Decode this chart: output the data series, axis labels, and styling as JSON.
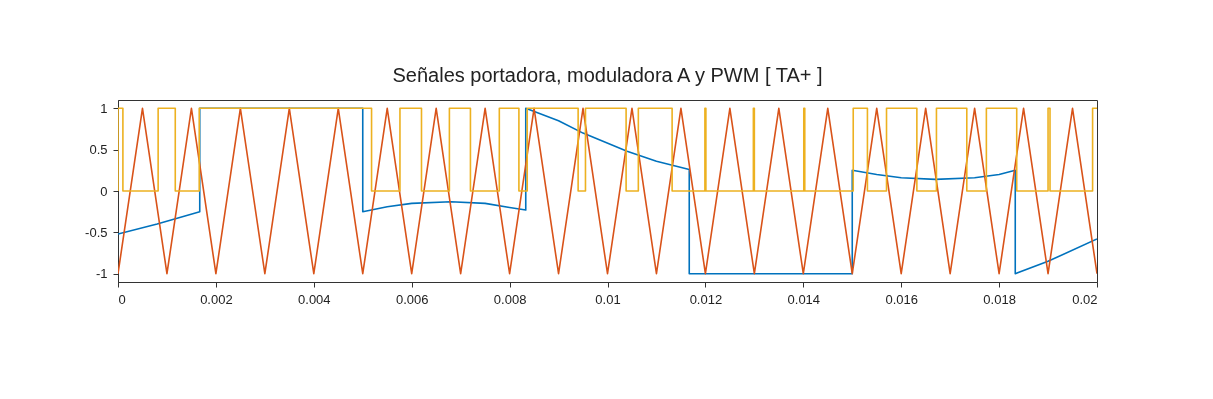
{
  "chart_data": {
    "type": "line",
    "title": "Señales portadora, moduladora A y PWM [ TA+ ]",
    "xlim": [
      0,
      0.02
    ],
    "xticks": [
      0,
      0.002,
      0.004,
      0.006,
      0.008,
      0.01,
      0.012,
      0.014,
      0.016,
      0.018,
      0.02
    ],
    "ylim": [
      -1.1,
      1.1
    ],
    "yticks": [
      -1,
      -0.5,
      0,
      0.5,
      1
    ],
    "grid": false,
    "series": [
      {
        "color": "#0072bd",
        "x": [
          0,
          0.0008,
          0.00167,
          0.00167,
          0.005,
          0.005,
          0.0055,
          0.006,
          0.0068,
          0.0075,
          0.008,
          0.00833,
          0.00833,
          0.009,
          0.0095,
          0.0104,
          0.011,
          0.01167,
          0.01167,
          0.015,
          0.015,
          0.0155,
          0.016,
          0.0167,
          0.0175,
          0.018,
          0.01833,
          0.01833,
          0.019,
          0.02
        ],
        "values": [
          -0.52,
          -0.4,
          -0.25,
          1,
          1,
          -0.25,
          -0.19,
          -0.15,
          -0.13,
          -0.15,
          -0.2,
          -0.23,
          1,
          0.85,
          0.7,
          0.48,
          0.36,
          0.26,
          -1,
          -1,
          0.25,
          0.2,
          0.16,
          0.14,
          0.16,
          0.2,
          0.25,
          -1,
          -0.85,
          -0.58
        ]
      },
      {
        "color": "#d95319",
        "x": [
          0,
          0.0005,
          0.001,
          0.0015,
          0.002,
          0.0025,
          0.003,
          0.0035,
          0.004,
          0.0045,
          0.005,
          0.0055,
          0.006,
          0.0065,
          0.007,
          0.0075,
          0.008,
          0.0085,
          0.009,
          0.0095,
          0.01,
          0.0105,
          0.011,
          0.0115,
          0.012,
          0.0125,
          0.013,
          0.0135,
          0.014,
          0.0145,
          0.015,
          0.0155,
          0.016,
          0.0165,
          0.017,
          0.0175,
          0.018,
          0.0185,
          0.019,
          0.0195,
          0.02
        ],
        "values": [
          -1,
          1,
          -1,
          1,
          -1,
          1,
          -1,
          1,
          -1,
          1,
          -1,
          1,
          -1,
          1,
          -1,
          1,
          -1,
          1,
          -1,
          1,
          -1,
          1,
          -1,
          1,
          -1,
          1,
          -1,
          1,
          -1,
          1,
          -1,
          1,
          -1,
          1,
          -1,
          1,
          -1,
          1,
          -1,
          1,
          -1
        ]
      },
      {
        "color": "#edb120",
        "x": [
          0,
          0,
          0.0001,
          0.0001,
          0.00082,
          0.00082,
          0.00117,
          0.00117,
          0.00166,
          0.00166,
          0.00518,
          0.00518,
          0.00576,
          0.00576,
          0.0062,
          0.0062,
          0.00677,
          0.00677,
          0.0072,
          0.0072,
          0.00779,
          0.00779,
          0.00819,
          0.00819,
          0.00836,
          0.00836,
          0.0094,
          0.0094,
          0.00955,
          0.00955,
          0.01038,
          0.01038,
          0.01063,
          0.01063,
          0.01132,
          0.01132,
          0.01199,
          0.01199,
          0.01201,
          0.01201,
          0.01298,
          0.01298,
          0.013,
          0.013,
          0.01401,
          0.01401,
          0.01403,
          0.01403,
          0.01502,
          0.01502,
          0.01531,
          0.01531,
          0.0157,
          0.0157,
          0.01632,
          0.01632,
          0.01672,
          0.01672,
          0.01734,
          0.01734,
          0.01774,
          0.01774,
          0.01836,
          0.01836,
          0.019,
          0.019,
          0.01904,
          0.01904,
          0.01991,
          0.01991,
          0.02
        ],
        "values": [
          0,
          1,
          1,
          0,
          0,
          1,
          1,
          0,
          0,
          1,
          1,
          0,
          0,
          1,
          1,
          0,
          0,
          1,
          1,
          0,
          0,
          1,
          1,
          0,
          0,
          1,
          1,
          0,
          0,
          1,
          1,
          0,
          0,
          1,
          1,
          0,
          0,
          1,
          1,
          0,
          0,
          1,
          1,
          0,
          0,
          1,
          1,
          0,
          0,
          1,
          1,
          0,
          0,
          1,
          1,
          0,
          0,
          1,
          1,
          0,
          0,
          1,
          1,
          0,
          0,
          1,
          1,
          0,
          0,
          1,
          1
        ]
      }
    ]
  }
}
